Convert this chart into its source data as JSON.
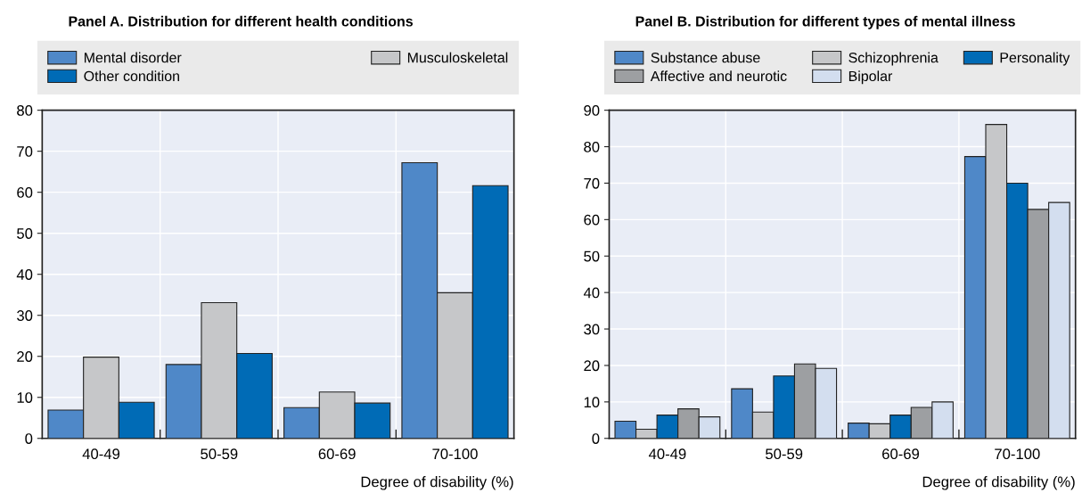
{
  "chart_data": [
    {
      "type": "bar",
      "title": "Panel A. Distribution for different health conditions",
      "xlabel": "Degree of disability (%)",
      "categories": [
        "40-49",
        "50-59",
        "60-69",
        "70-100"
      ],
      "series": [
        {
          "name": "Mental disorder",
          "color": "#4f88c8",
          "values": [
            6.9,
            18.0,
            7.5,
            67.2
          ]
        },
        {
          "name": "Musculoskeletal",
          "color": "#c6c7c9",
          "values": [
            19.8,
            33.1,
            11.3,
            35.5
          ]
        },
        {
          "name": "Other condition",
          "color": "#006bb6",
          "values": [
            8.8,
            20.7,
            8.6,
            61.6
          ]
        }
      ],
      "ylim": [
        0,
        80
      ],
      "yticks": [
        0,
        10,
        20,
        30,
        40,
        50,
        60,
        70,
        80
      ],
      "grid": true,
      "legend": "top"
    },
    {
      "type": "bar",
      "title": "Panel B. Distribution for different types of mental illness",
      "xlabel": "Degree of disability (%)",
      "categories": [
        "40-49",
        "50-59",
        "60-69",
        "70-100"
      ],
      "series": [
        {
          "name": "Substance abuse",
          "color": "#4f88c8",
          "values": [
            4.7,
            13.6,
            4.2,
            77.3
          ]
        },
        {
          "name": "Schizophrenia",
          "color": "#c6c7c9",
          "values": [
            2.5,
            7.2,
            4.0,
            86.1
          ]
        },
        {
          "name": "Personality",
          "color": "#006bb6",
          "values": [
            6.4,
            17.1,
            6.4,
            70.0
          ]
        },
        {
          "name": "Affective and neurotic",
          "color": "#9d9fa2",
          "values": [
            8.1,
            20.4,
            8.5,
            62.8
          ]
        },
        {
          "name": "Bipolar",
          "color": "#d3deef",
          "values": [
            5.9,
            19.2,
            10.0,
            64.7
          ]
        }
      ],
      "ylim": [
        0,
        90
      ],
      "yticks": [
        0,
        10,
        20,
        30,
        40,
        50,
        60,
        70,
        80,
        90
      ],
      "grid": true,
      "legend": "top"
    }
  ]
}
